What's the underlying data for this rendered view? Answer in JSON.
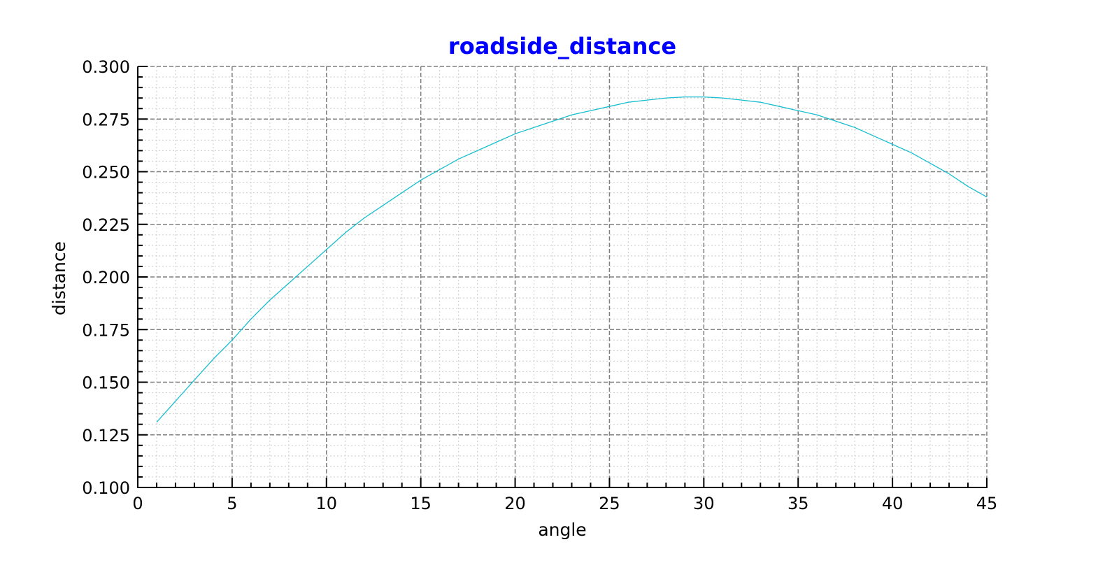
{
  "chart_data": {
    "type": "line",
    "title": "roadside_distance",
    "xlabel": "angle",
    "ylabel": "distance",
    "xlim": [
      0,
      45
    ],
    "ylim": [
      0.1,
      0.3
    ],
    "x_ticks": [
      "0",
      "5",
      "10",
      "15",
      "20",
      "25",
      "30",
      "35",
      "40",
      "45"
    ],
    "y_ticks": [
      "0.100",
      "0.125",
      "0.150",
      "0.175",
      "0.200",
      "0.225",
      "0.250",
      "0.275",
      "0.300"
    ],
    "grid": {
      "major": true,
      "minor": true,
      "major_style": "dashed",
      "minor_style": "dotted"
    },
    "series": [
      {
        "color": "#17becf",
        "x": [
          1,
          2,
          3,
          4,
          5,
          6,
          7,
          8,
          9,
          10,
          11,
          12,
          13,
          14,
          15,
          16,
          17,
          18,
          19,
          20,
          21,
          22,
          23,
          24,
          25,
          26,
          27,
          28,
          29,
          30,
          31,
          32,
          33,
          34,
          35,
          36,
          37,
          38,
          39,
          40,
          41,
          42,
          43,
          44,
          45
        ],
        "y": [
          0.131,
          0.141,
          0.151,
          0.161,
          0.17,
          0.18,
          0.189,
          0.197,
          0.205,
          0.213,
          0.221,
          0.228,
          0.234,
          0.24,
          0.246,
          0.251,
          0.256,
          0.26,
          0.264,
          0.268,
          0.271,
          0.274,
          0.277,
          0.279,
          0.281,
          0.283,
          0.284,
          0.285,
          0.2855,
          0.2855,
          0.285,
          0.284,
          0.283,
          0.281,
          0.279,
          0.277,
          0.274,
          0.271,
          0.267,
          0.263,
          0.259,
          0.254,
          0.249,
          0.243,
          0.238
        ]
      }
    ],
    "colors": {
      "title": "#0000ff",
      "major_grid": "#7f7f7f",
      "minor_grid": "#d3d3d3",
      "axis": "#000000"
    }
  }
}
